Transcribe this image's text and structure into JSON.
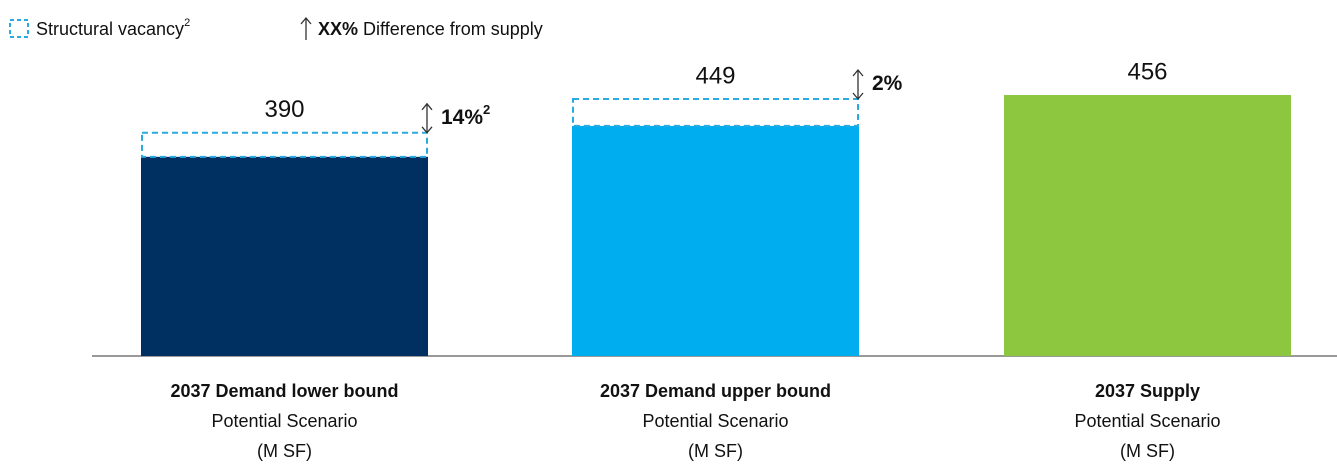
{
  "chart_data": {
    "type": "stacked_bar",
    "legend": [
      {
        "name": "Structural vacancy",
        "note": "2"
      },
      {
        "label": "XX%",
        "name": "Difference from supply"
      }
    ],
    "categories": [
      "2037 Demand lower bound",
      "2037 Demand upper bound",
      "2037 Supply"
    ],
    "category_sublabels": [
      [
        "Potential Scenario",
        "(M SF)"
      ],
      [
        "Potential Scenario",
        "(M SF)"
      ],
      [
        "Potential Scenario",
        "(M SF)"
      ]
    ],
    "series": [
      {
        "colors": [
          "#002f62",
          "#00adef",
          "#8dc63f"
        ],
        "values": [
          348,
          402,
          456
        ]
      },
      {
        "name": "Structural vacancy",
        "color": "#29abe2",
        "values": [
          42,
          47,
          null
        ]
      }
    ],
    "totals": [
      390,
      449,
      456
    ],
    "differences": [
      14,
      2,
      null
    ],
    "difference_labels": [
      "14%",
      "2%",
      null
    ],
    "difference_notes": [
      "2",
      null,
      null
    ],
    "ylim": [
      0,
      456
    ]
  }
}
